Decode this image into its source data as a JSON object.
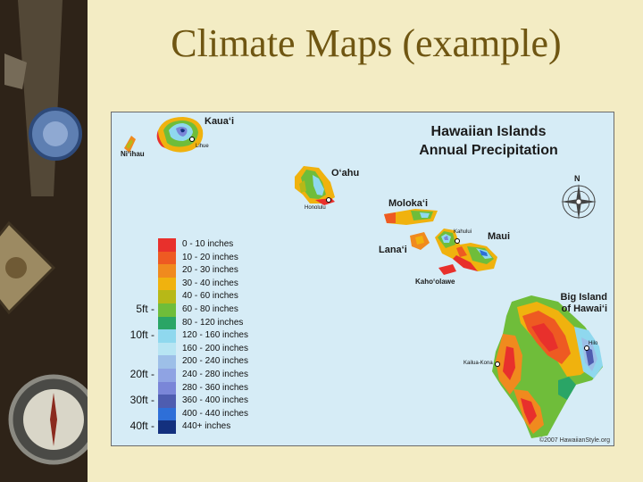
{
  "slide": {
    "title": "Climate Maps (example)"
  },
  "map": {
    "title_line1": "Hawaiian Islands",
    "title_line2": "Annual Precipitation",
    "compass_letter": "N",
    "copyright": "©2007 HawaiianStyle.org",
    "islands": {
      "kauai": "Kaua‘i",
      "niihau": "Ni‘ihau",
      "oahu": "O‘ahu",
      "molokai": "Moloka‘i",
      "lanai": "Lana‘i",
      "maui": "Maui",
      "kahoolawe": "Kaho‘olawe",
      "big_island_line1": "Big Island",
      "big_island_line2": "of Hawai‘i"
    },
    "towns": {
      "lihue": "Lihue",
      "honolulu": "Honolulu",
      "kahului": "Kahului",
      "hilo": "Hilo",
      "kailua_kona": "Kailua-Kona"
    },
    "legend": [
      {
        "label": "0 - 10 inches",
        "color": "#e8302c"
      },
      {
        "label": "10 - 20 inches",
        "color": "#ee5a22"
      },
      {
        "label": "20 - 30 inches",
        "color": "#f08a1e"
      },
      {
        "label": "30 - 40 inches",
        "color": "#f0b20e"
      },
      {
        "label": "40 - 60 inches",
        "color": "#b7b817"
      },
      {
        "label": "60 - 80 inches",
        "color": "#6fbd3a"
      },
      {
        "label": "80 - 120 inches",
        "color": "#2aa566"
      },
      {
        "label": "120 - 160 inches",
        "color": "#8fd8ee"
      },
      {
        "label": "160 - 200 inches",
        "color": "#b7e5f3"
      },
      {
        "label": "200 - 240 inches",
        "color": "#9dbfe8"
      },
      {
        "label": "240 - 280 inches",
        "color": "#8fa3e3"
      },
      {
        "label": "280 - 360 inches",
        "color": "#7a86d8"
      },
      {
        "label": "360 - 400 inches",
        "color": "#4e5db0"
      },
      {
        "label": "400 - 440 inches",
        "color": "#2e6fd8"
      },
      {
        "label": "440+ inches",
        "color": "#13307e"
      }
    ],
    "elevations": [
      {
        "label": "5ft -",
        "row": 5
      },
      {
        "label": "10ft -",
        "row": 7
      },
      {
        "label": "20ft -",
        "row": 10
      },
      {
        "label": "30ft -",
        "row": 12
      },
      {
        "label": "40ft -",
        "row": 14
      }
    ]
  }
}
